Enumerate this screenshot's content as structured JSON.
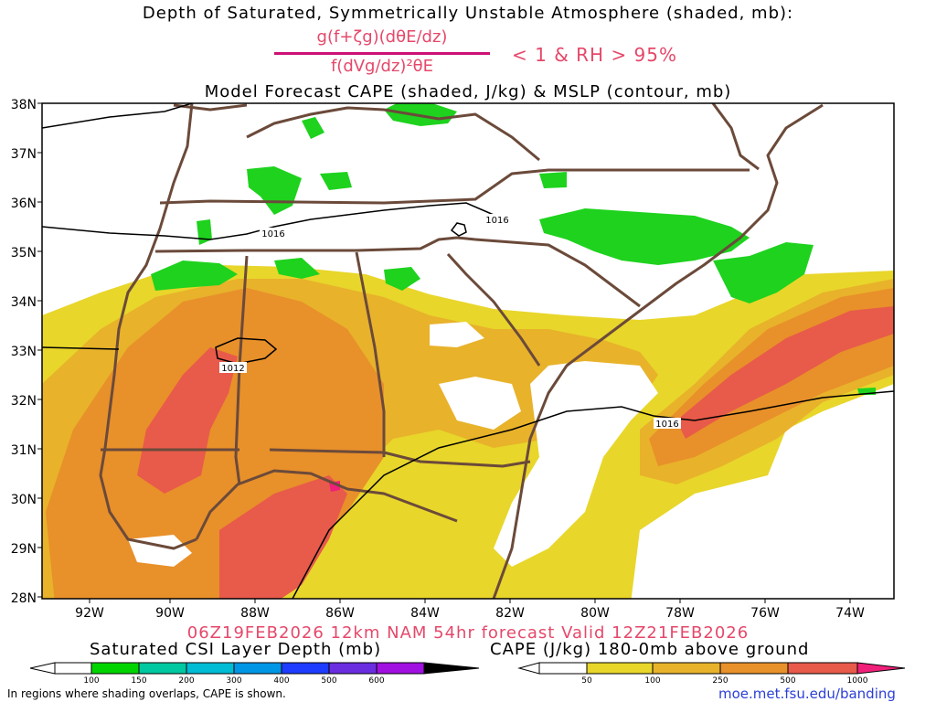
{
  "titles": {
    "line1": "Depth of Saturated, Symmetrically Unstable Atmosphere (shaded, mb):",
    "fraction_numerator": "g(f+ζg)(dθE/dz)",
    "fraction_denominator": "f(dVg/dz)²θE",
    "condition": "< 1 & RH > 95%",
    "line3": "Model Forecast CAPE (shaded, J/kg) & MSLP (contour, mb)",
    "valid": "06Z19FEB2026 12km NAM 54hr forecast Valid 12Z21FEB2026"
  },
  "axes": {
    "lat_labels": [
      "38N",
      "37N",
      "36N",
      "35N",
      "34N",
      "33N",
      "32N",
      "31N",
      "30N",
      "29N",
      "28N"
    ],
    "lon_labels": [
      "92W",
      "90W",
      "88W",
      "86W",
      "84W",
      "82W",
      "80W",
      "78W",
      "76W",
      "74W"
    ]
  },
  "isobars": [
    {
      "label": "1016"
    },
    {
      "label": "1016"
    },
    {
      "label": "1012"
    },
    {
      "label": "1016"
    }
  ],
  "colorbars": {
    "csi": {
      "title": "Saturated CSI Layer Depth (mb)",
      "ticks": [
        "100",
        "150",
        "200",
        "300",
        "400",
        "500",
        "600"
      ],
      "colors": [
        "#00d400",
        "#00c8a0",
        "#00bcd4",
        "#0096e6",
        "#1e3cff",
        "#6a2ee0",
        "#a010e0",
        "#000000"
      ]
    },
    "cape": {
      "title": "CAPE (J/kg) 180-0mb above ground",
      "ticks": [
        "50",
        "100",
        "250",
        "500",
        "1000"
      ],
      "colors": [
        "#e8d62a",
        "#e8b22a",
        "#e8902a",
        "#e85a4a",
        "#f0207a"
      ]
    }
  },
  "footer": {
    "note": "In regions where shading overlaps, CAPE is shown.",
    "credit": "moe.met.fsu.edu/banding"
  },
  "colors": {
    "title_accent": "#e5486a",
    "border": "#6b4a3a",
    "credit": "#2b3fd6"
  }
}
